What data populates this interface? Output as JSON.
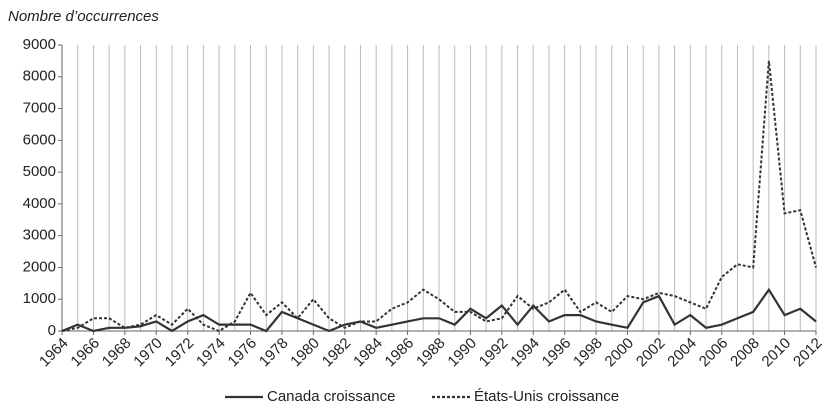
{
  "chart_data": {
    "type": "line",
    "title": "Nombre d’occurrences",
    "x": [
      1964,
      1965,
      1966,
      1967,
      1968,
      1969,
      1970,
      1971,
      1972,
      1973,
      1974,
      1975,
      1976,
      1977,
      1978,
      1979,
      1980,
      1981,
      1982,
      1983,
      1984,
      1985,
      1986,
      1987,
      1988,
      1989,
      1990,
      1991,
      1992,
      1993,
      1994,
      1995,
      1996,
      1997,
      1998,
      1999,
      2000,
      2001,
      2002,
      2003,
      2004,
      2005,
      2006,
      2007,
      2008,
      2009,
      2010,
      2011,
      2012
    ],
    "series": [
      {
        "name": "Canada croissance",
        "color": "#333333",
        "style": "solid",
        "values": [
          0,
          200,
          0,
          100,
          100,
          150,
          300,
          0,
          300,
          500,
          200,
          200,
          200,
          0,
          600,
          400,
          200,
          0,
          200,
          300,
          100,
          200,
          300,
          400,
          400,
          200,
          700,
          400,
          800,
          200,
          800,
          300,
          500,
          500,
          300,
          200,
          100,
          900,
          1100,
          200,
          500,
          100,
          200,
          400,
          600,
          1300,
          500,
          700,
          300
        ]
      },
      {
        "name": "États-Unis croissance",
        "color": "#333333",
        "style": "dashed",
        "values": [
          0,
          100,
          400,
          400,
          100,
          200,
          500,
          200,
          700,
          200,
          0,
          300,
          1200,
          500,
          900,
          400,
          1000,
          400,
          100,
          300,
          300,
          700,
          900,
          1300,
          1000,
          600,
          600,
          300,
          400,
          1100,
          700,
          900,
          1300,
          600,
          900,
          600,
          1100,
          1000,
          1200,
          1100,
          900,
          700,
          1700,
          2100,
          2000,
          8500,
          3700,
          3800,
          2000
        ]
      }
    ],
    "xlim": [
      1964,
      2012
    ],
    "xticks": [
      1964,
      1966,
      1968,
      1970,
      1972,
      1974,
      1976,
      1978,
      1980,
      1982,
      1984,
      1986,
      1988,
      1990,
      1992,
      1994,
      1996,
      1998,
      2000,
      2002,
      2004,
      2006,
      2008,
      2010,
      2012
    ],
    "ylim": [
      0,
      9000
    ],
    "yticks": [
      0,
      1000,
      2000,
      3000,
      4000,
      5000,
      6000,
      7000,
      8000,
      9000
    ],
    "grid": "x"
  }
}
